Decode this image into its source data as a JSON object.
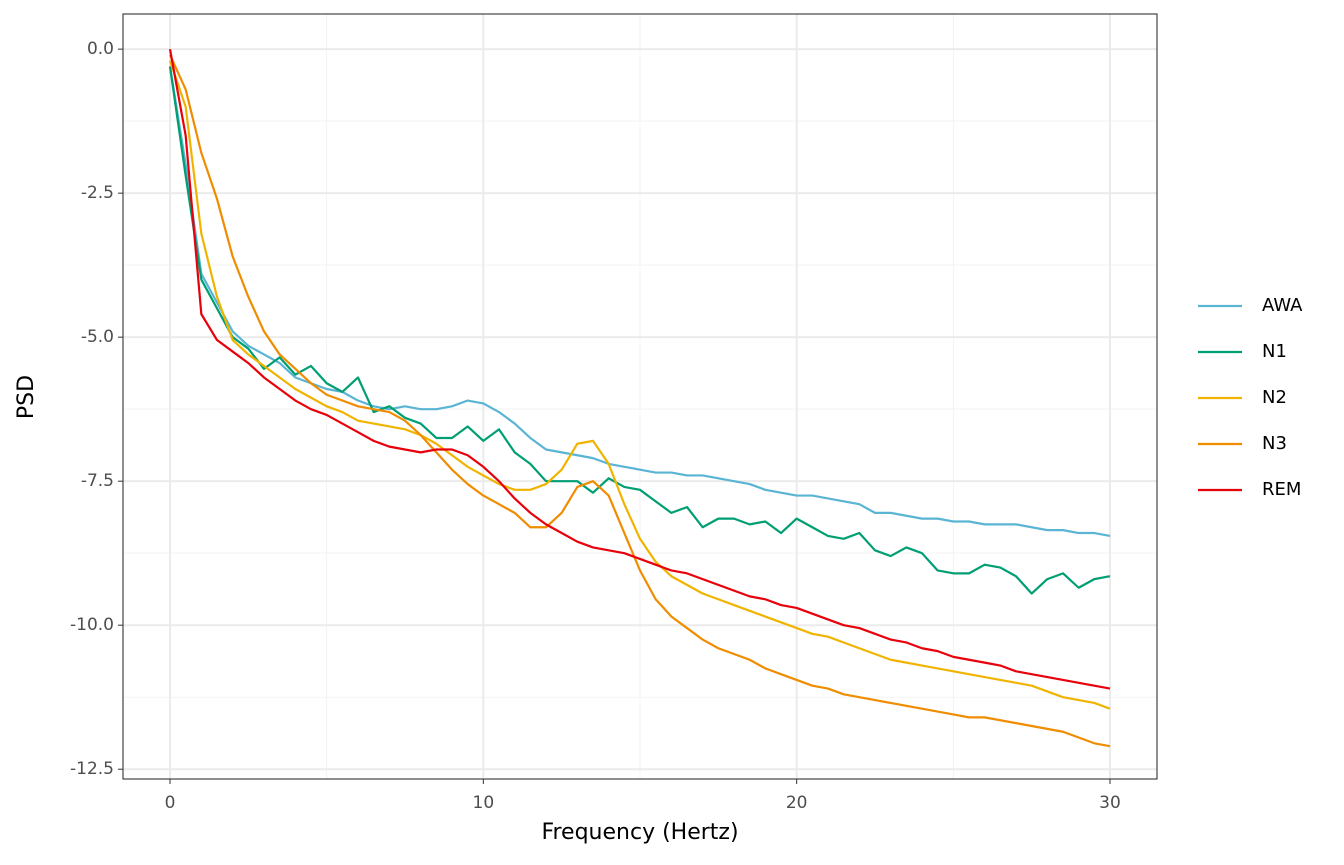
{
  "chart_data": {
    "type": "line",
    "xlabel": "Frequency (Hertz)",
    "ylabel": "PSD",
    "x": [
      0,
      0.5,
      1,
      1.5,
      2,
      2.5,
      3,
      3.5,
      4,
      4.5,
      5,
      5.5,
      6,
      6.5,
      7,
      7.5,
      8,
      8.5,
      9,
      9.5,
      10,
      10.5,
      11,
      11.5,
      12,
      12.5,
      13,
      13.5,
      14,
      14.5,
      15,
      15.5,
      16,
      16.5,
      17,
      17.5,
      18,
      18.5,
      19,
      19.5,
      20,
      20.5,
      21,
      21.5,
      22,
      22.5,
      23,
      23.5,
      24,
      24.5,
      25,
      25.5,
      26,
      26.5,
      27,
      27.5,
      28,
      28.5,
      29,
      29.5,
      30
    ],
    "series": [
      {
        "name": "AWA",
        "color": "#5ab4d4",
        "values": [
          -0.3,
          -2,
          -3.9,
          -4.4,
          -4.9,
          -5.15,
          -5.3,
          -5.45,
          -5.7,
          -5.8,
          -5.9,
          -5.95,
          -6.1,
          -6.2,
          -6.25,
          -6.2,
          -6.25,
          -6.25,
          -6.2,
          -6.1,
          -6.15,
          -6.3,
          -6.5,
          -6.75,
          -6.95,
          -7.0,
          -7.05,
          -7.1,
          -7.2,
          -7.25,
          -7.3,
          -7.35,
          -7.35,
          -7.4,
          -7.4,
          -7.45,
          -7.5,
          -7.55,
          -7.65,
          -7.7,
          -7.75,
          -7.75,
          -7.8,
          -7.85,
          -7.9,
          -8.05,
          -8.05,
          -8.1,
          -8.15,
          -8.15,
          -8.2,
          -8.2,
          -8.25,
          -8.25,
          -8.25,
          -8.3,
          -8.35,
          -8.35,
          -8.4,
          -8.4,
          -8.45
        ]
      },
      {
        "name": "N1",
        "color": "#009e73",
        "values": [
          -0.3,
          -2.2,
          -4.0,
          -4.5,
          -5.0,
          -5.2,
          -5.55,
          -5.35,
          -5.65,
          -5.5,
          -5.8,
          -5.95,
          -5.7,
          -6.3,
          -6.2,
          -6.4,
          -6.5,
          -6.75,
          -6.75,
          -6.55,
          -6.8,
          -6.6,
          -7.0,
          -7.2,
          -7.5,
          -7.5,
          -7.5,
          -7.7,
          -7.45,
          -7.6,
          -7.65,
          -7.85,
          -8.05,
          -7.95,
          -8.3,
          -8.15,
          -8.15,
          -8.25,
          -8.2,
          -8.4,
          -8.15,
          -8.3,
          -8.45,
          -8.5,
          -8.4,
          -8.7,
          -8.8,
          -8.65,
          -8.75,
          -9.05,
          -9.1,
          -9.1,
          -8.95,
          -9.0,
          -9.15,
          -9.45,
          -9.2,
          -9.1,
          -9.35,
          -9.2,
          -9.15
        ]
      },
      {
        "name": "N2",
        "color": "#f0b400",
        "values": [
          -0.2,
          -1.0,
          -3.2,
          -4.3,
          -5.05,
          -5.3,
          -5.5,
          -5.7,
          -5.9,
          -6.05,
          -6.2,
          -6.3,
          -6.45,
          -6.5,
          -6.55,
          -6.6,
          -6.7,
          -6.85,
          -7.05,
          -7.25,
          -7.4,
          -7.55,
          -7.65,
          -7.65,
          -7.55,
          -7.3,
          -6.85,
          -6.8,
          -7.2,
          -7.9,
          -8.5,
          -8.9,
          -9.15,
          -9.3,
          -9.45,
          -9.55,
          -9.65,
          -9.75,
          -9.85,
          -9.95,
          -10.05,
          -10.15,
          -10.2,
          -10.3,
          -10.4,
          -10.5,
          -10.6,
          -10.65,
          -10.7,
          -10.75,
          -10.8,
          -10.85,
          -10.9,
          -10.95,
          -11.0,
          -11.05,
          -11.15,
          -11.25,
          -11.3,
          -11.35,
          -11.45
        ]
      },
      {
        "name": "N3",
        "color": "#f08c00",
        "values": [
          -0.1,
          -0.7,
          -1.8,
          -2.6,
          -3.6,
          -4.3,
          -4.9,
          -5.3,
          -5.55,
          -5.8,
          -6.0,
          -6.1,
          -6.2,
          -6.25,
          -6.3,
          -6.45,
          -6.7,
          -7.0,
          -7.3,
          -7.55,
          -7.75,
          -7.9,
          -8.05,
          -8.3,
          -8.3,
          -8.05,
          -7.6,
          -7.5,
          -7.75,
          -8.4,
          -9.05,
          -9.55,
          -9.85,
          -10.05,
          -10.25,
          -10.4,
          -10.5,
          -10.6,
          -10.75,
          -10.85,
          -10.95,
          -11.05,
          -11.1,
          -11.2,
          -11.25,
          -11.3,
          -11.35,
          -11.4,
          -11.45,
          -11.5,
          -11.55,
          -11.6,
          -11.6,
          -11.65,
          -11.7,
          -11.75,
          -11.8,
          -11.85,
          -11.95,
          -12.05,
          -12.1
        ]
      },
      {
        "name": "REM",
        "color": "#e8000b",
        "values": [
          0.0,
          -1.5,
          -4.6,
          -5.05,
          -5.25,
          -5.45,
          -5.7,
          -5.9,
          -6.1,
          -6.25,
          -6.35,
          -6.5,
          -6.65,
          -6.8,
          -6.9,
          -6.95,
          -7.0,
          -6.95,
          -6.95,
          -7.05,
          -7.25,
          -7.5,
          -7.8,
          -8.05,
          -8.25,
          -8.4,
          -8.55,
          -8.65,
          -8.7,
          -8.75,
          -8.85,
          -8.95,
          -9.05,
          -9.1,
          -9.2,
          -9.3,
          -9.4,
          -9.5,
          -9.55,
          -9.65,
          -9.7,
          -9.8,
          -9.9,
          -10.0,
          -10.05,
          -10.15,
          -10.25,
          -10.3,
          -10.4,
          -10.45,
          -10.55,
          -10.6,
          -10.65,
          -10.7,
          -10.8,
          -10.85,
          -10.9,
          -10.95,
          -11.0,
          -11.05,
          -11.1
        ]
      }
    ],
    "xlim": [
      -1.5,
      31.5
    ],
    "xticks": [
      0,
      10,
      20,
      30
    ],
    "xminor": [
      5,
      15,
      25
    ],
    "ylim": [
      -12.67,
      0.61
    ],
    "yticks": [
      {
        "value": 0,
        "label": "0.0"
      },
      -2.5,
      {
        "value": -5,
        "label": "-5.0"
      },
      -7.5,
      {
        "value": -10,
        "label": "-10.0"
      },
      -12.5
    ],
    "yminor": [
      -1.25,
      -3.75,
      -6.25,
      -8.75,
      -11.25
    ],
    "grid": true,
    "legend": "right"
  }
}
